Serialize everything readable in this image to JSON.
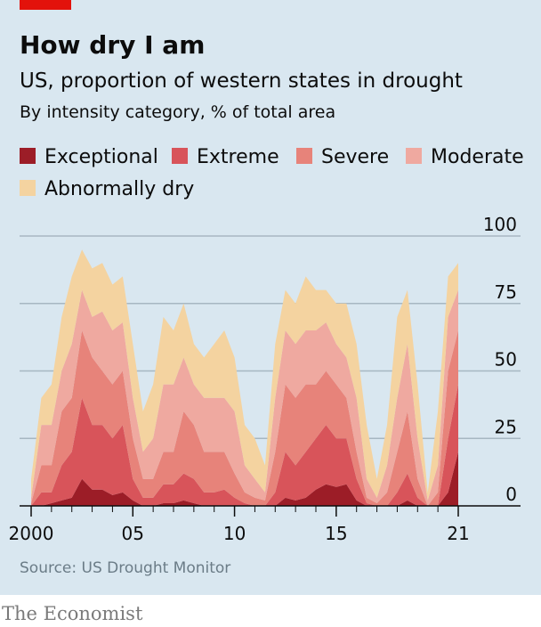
{
  "brand": "The Economist",
  "chart_data": {
    "type": "stacked_area",
    "title": "How dry I am",
    "subtitle": "US, proportion of western states in drought",
    "description": "By intensity category, % of total area",
    "source": "Source: US Drought Monitor",
    "x": [
      2000.0,
      2000.5,
      2001.0,
      2001.5,
      2002.0,
      2002.5,
      2003.0,
      2003.5,
      2004.0,
      2004.5,
      2005.0,
      2005.5,
      2006.0,
      2006.5,
      2007.0,
      2007.5,
      2008.0,
      2008.5,
      2009.0,
      2009.5,
      2010.0,
      2010.5,
      2011.0,
      2011.5,
      2012.0,
      2012.5,
      2013.0,
      2013.5,
      2014.0,
      2014.5,
      2015.0,
      2015.5,
      2016.0,
      2016.5,
      2017.0,
      2017.5,
      2018.0,
      2018.5,
      2019.0,
      2019.5,
      2020.0,
      2020.5,
      2021.0
    ],
    "series": [
      {
        "name": "Exceptional",
        "color": "#9c1d27",
        "values": [
          0,
          0,
          1,
          2,
          3,
          10,
          6,
          6,
          4,
          5,
          2,
          0,
          0,
          1,
          1,
          2,
          1,
          0,
          0,
          0,
          0,
          0,
          0,
          0,
          0,
          3,
          2,
          3,
          6,
          8,
          7,
          8,
          2,
          0,
          0,
          0,
          0,
          2,
          0,
          0,
          0,
          5,
          20
        ]
      },
      {
        "name": "Extreme",
        "color": "#d8545a",
        "values": [
          0,
          5,
          4,
          13,
          17,
          30,
          24,
          24,
          21,
          25,
          8,
          3,
          3,
          7,
          7,
          10,
          9,
          5,
          5,
          6,
          3,
          1,
          0,
          0,
          5,
          17,
          13,
          17,
          19,
          22,
          18,
          17,
          8,
          1,
          0,
          0,
          5,
          10,
          3,
          0,
          0,
          20,
          25
        ]
      },
      {
        "name": "Severe",
        "color": "#e7837a",
        "values": [
          1,
          10,
          10,
          20,
          20,
          25,
          25,
          20,
          20,
          20,
          15,
          7,
          7,
          12,
          12,
          23,
          20,
          15,
          15,
          14,
          9,
          4,
          3,
          2,
          15,
          25,
          25,
          25,
          20,
          20,
          20,
          15,
          10,
          2,
          1,
          5,
          15,
          23,
          7,
          0,
          5,
          25,
          20
        ]
      },
      {
        "name": "Moderate",
        "color": "#efa9a0",
        "values": [
          2,
          15,
          15,
          15,
          20,
          15,
          15,
          22,
          20,
          18,
          15,
          10,
          15,
          25,
          25,
          20,
          15,
          20,
          20,
          20,
          23,
          10,
          7,
          3,
          20,
          20,
          20,
          20,
          20,
          18,
          15,
          15,
          20,
          7,
          2,
          10,
          20,
          25,
          15,
          2,
          10,
          20,
          15
        ]
      },
      {
        "name": "Abnormally dry",
        "color": "#f4d3a0",
        "values": [
          7,
          10,
          15,
          20,
          25,
          15,
          18,
          18,
          17,
          17,
          20,
          15,
          20,
          25,
          20,
          20,
          15,
          15,
          20,
          25,
          20,
          15,
          15,
          10,
          20,
          15,
          15,
          20,
          15,
          12,
          15,
          20,
          20,
          20,
          7,
          15,
          30,
          20,
          20,
          3,
          20,
          15,
          10
        ]
      }
    ],
    "xlim": [
      1999.6,
      2021.3
    ],
    "xticks": [
      {
        "value": 2000,
        "label": "2000"
      },
      {
        "value": 2005,
        "label": "05"
      },
      {
        "value": 2010,
        "label": "10"
      },
      {
        "value": 2015,
        "label": "15"
      },
      {
        "value": 2021,
        "label": "21"
      }
    ],
    "xminor_ticks": [
      2001,
      2002,
      2003,
      2004,
      2006,
      2007,
      2008,
      2009,
      2011,
      2012,
      2013,
      2014,
      2016,
      2017,
      2018,
      2019,
      2020
    ],
    "ylim": [
      0,
      100
    ],
    "yticks": [
      0,
      25,
      50,
      75,
      100
    ],
    "grid": true
  }
}
